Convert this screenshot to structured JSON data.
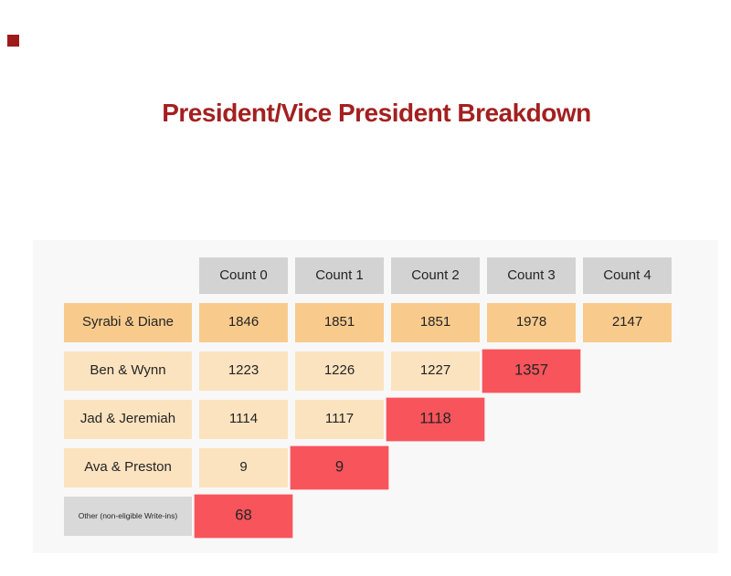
{
  "page": {
    "title": "President/Vice President Breakdown"
  },
  "colors": {
    "title_text": "#a32020",
    "decoration_square": "#9e1b1b",
    "panel_bg": "#f8f8f8",
    "header_bg": "#d3d3d3",
    "winner_row_bg": "#f8cb8d",
    "row_bg": "#fce3bf",
    "eliminated_bg": "#f7555b",
    "other_label_bg": "#d9d9d9",
    "cell_text": "#242424"
  },
  "chart_data": {
    "type": "table",
    "title": "President/Vice President Breakdown",
    "columns": [
      "Count 0",
      "Count 1",
      "Count 2",
      "Count 3",
      "Count 4"
    ],
    "rows": [
      {
        "label": "Syrabi & Diane",
        "values": [
          "1846",
          "1851",
          "1851",
          "1978",
          "2147"
        ],
        "eliminated_at": null,
        "tone": "orange",
        "small_label": false
      },
      {
        "label": "Ben & Wynn",
        "values": [
          "1223",
          "1226",
          "1227",
          "1357"
        ],
        "eliminated_at": 3,
        "tone": "peach",
        "small_label": false
      },
      {
        "label": "Jad & Jeremiah",
        "values": [
          "1114",
          "1117",
          "1118"
        ],
        "eliminated_at": 2,
        "tone": "peach",
        "small_label": false
      },
      {
        "label": "Ava & Preston",
        "values": [
          "9",
          "9"
        ],
        "eliminated_at": 1,
        "tone": "peach",
        "small_label": false
      },
      {
        "label": "Other (non-eligible Write-ins)",
        "values": [
          "68"
        ],
        "eliminated_at": 0,
        "tone": "gray",
        "small_label": true
      }
    ],
    "layout": {
      "grid": "off",
      "legend": "none",
      "value_columns": 5
    }
  }
}
